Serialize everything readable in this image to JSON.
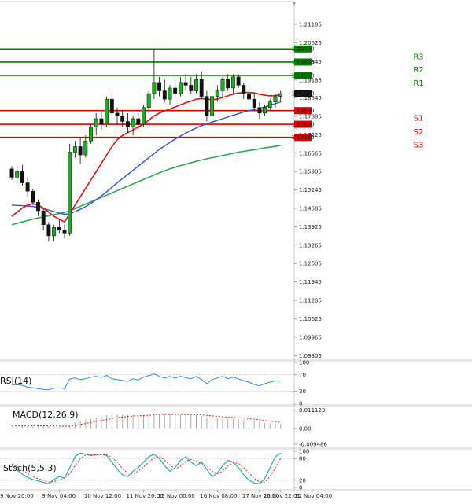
{
  "chart_data": {
    "type": "candlestick",
    "title": "",
    "price_axis": {
      "ylim": [
        1.092,
        1.22
      ],
      "ticks": [
        "1.21185",
        "1.20525",
        "1.19845",
        "1.19185",
        "1.18545",
        "1.17885",
        "1.17225",
        "1.16565",
        "1.15905",
        "1.15245",
        "1.14585",
        "1.13925",
        "1.13265",
        "1.12605",
        "1.11945",
        "1.11285",
        "1.10625",
        "1.09965",
        "1.09305"
      ],
      "tick_values": [
        1.21185,
        1.20525,
        1.19845,
        1.19185,
        1.18545,
        1.17885,
        1.17225,
        1.16565,
        1.15905,
        1.15245,
        1.14585,
        1.13925,
        1.13265,
        1.12605,
        1.11945,
        1.11285,
        1.10625,
        1.09965,
        1.09305
      ]
    },
    "levels": [
      {
        "name": "R3",
        "value": 1.203,
        "tag": "1.20300",
        "color": "#008000"
      },
      {
        "name": "R2",
        "value": 1.1983,
        "tag": "1.19830",
        "color": "#008000"
      },
      {
        "name": "R1",
        "value": 1.1935,
        "tag": "1.19350",
        "color": "#008000"
      },
      {
        "name": "S1",
        "value": 1.1809,
        "tag": "1.18090",
        "color": "#e00000"
      },
      {
        "name": "S2",
        "value": 1.176,
        "tag": "1.17600",
        "color": "#e00000"
      },
      {
        "name": "S3",
        "value": 1.1713,
        "tag": "1.17130",
        "color": "#e00000"
      }
    ],
    "current_price": {
      "value": 1.187,
      "tag": "1.18700"
    },
    "candles": [
      [
        1.16,
        1.161,
        1.156,
        1.157
      ],
      [
        1.157,
        1.161,
        1.155,
        1.159
      ],
      [
        1.159,
        1.1615,
        1.154,
        1.155
      ],
      [
        1.155,
        1.157,
        1.15,
        1.152
      ],
      [
        1.152,
        1.153,
        1.147,
        1.148
      ],
      [
        1.148,
        1.149,
        1.143,
        1.145
      ],
      [
        1.145,
        1.146,
        1.138,
        1.14
      ],
      [
        1.14,
        1.141,
        1.134,
        1.136
      ],
      [
        1.136,
        1.14,
        1.134,
        1.139
      ],
      [
        1.139,
        1.142,
        1.137,
        1.138
      ],
      [
        1.138,
        1.14,
        1.135,
        1.137
      ],
      [
        1.137,
        1.169,
        1.136,
        1.166
      ],
      [
        1.166,
        1.17,
        1.164,
        1.168
      ],
      [
        1.168,
        1.171,
        1.162,
        1.165
      ],
      [
        1.165,
        1.172,
        1.164,
        1.17
      ],
      [
        1.17,
        1.176,
        1.169,
        1.175
      ],
      [
        1.175,
        1.18,
        1.172,
        1.178
      ],
      [
        1.178,
        1.181,
        1.174,
        1.176
      ],
      [
        1.176,
        1.186,
        1.175,
        1.185
      ],
      [
        1.185,
        1.187,
        1.179,
        1.18
      ],
      [
        1.18,
        1.182,
        1.176,
        1.179
      ],
      [
        1.179,
        1.181,
        1.175,
        1.177
      ],
      [
        1.177,
        1.18,
        1.173,
        1.175
      ],
      [
        1.175,
        1.179,
        1.172,
        1.178
      ],
      [
        1.178,
        1.18,
        1.174,
        1.176
      ],
      [
        1.176,
        1.183,
        1.175,
        1.182
      ],
      [
        1.182,
        1.188,
        1.18,
        1.187
      ],
      [
        1.187,
        1.203,
        1.185,
        1.191
      ],
      [
        1.191,
        1.193,
        1.186,
        1.188
      ],
      [
        1.188,
        1.192,
        1.184,
        1.185
      ],
      [
        1.185,
        1.19,
        1.183,
        1.189
      ],
      [
        1.189,
        1.192,
        1.186,
        1.187
      ],
      [
        1.187,
        1.193,
        1.186,
        1.191
      ],
      [
        1.191,
        1.194,
        1.188,
        1.19
      ],
      [
        1.19,
        1.193,
        1.187,
        1.188
      ],
      [
        1.188,
        1.194,
        1.187,
        1.192
      ],
      [
        1.192,
        1.195,
        1.185,
        1.186
      ],
      [
        1.186,
        1.188,
        1.177,
        1.179
      ],
      [
        1.179,
        1.187,
        1.178,
        1.186
      ],
      [
        1.186,
        1.19,
        1.184,
        1.188
      ],
      [
        1.188,
        1.193,
        1.186,
        1.192
      ],
      [
        1.192,
        1.194,
        1.188,
        1.189
      ],
      [
        1.189,
        1.194,
        1.187,
        1.193
      ],
      [
        1.193,
        1.194,
        1.189,
        1.19
      ],
      [
        1.19,
        1.191,
        1.185,
        1.187
      ],
      [
        1.187,
        1.189,
        1.184,
        1.185
      ],
      [
        1.185,
        1.187,
        1.181,
        1.182
      ],
      [
        1.182,
        1.184,
        1.178,
        1.18
      ],
      [
        1.18,
        1.183,
        1.179,
        1.182
      ],
      [
        1.182,
        1.185,
        1.181,
        1.184
      ],
      [
        1.184,
        1.187,
        1.182,
        1.186
      ],
      [
        1.186,
        1.188,
        1.184,
        1.187
      ]
    ],
    "ma_red": [
      1.143,
      1.1445,
      1.146,
      1.147,
      1.1475,
      1.147,
      1.146,
      1.1445,
      1.143,
      1.142,
      1.141,
      1.144,
      1.147,
      1.15,
      1.153,
      1.156,
      1.159,
      1.162,
      1.165,
      1.168,
      1.1705,
      1.172,
      1.173,
      1.174,
      1.175,
      1.176,
      1.1775,
      1.179,
      1.18,
      1.1808,
      1.1815,
      1.1822,
      1.183,
      1.1837,
      1.1843,
      1.185,
      1.1852,
      1.185,
      1.1848,
      1.185,
      1.1856,
      1.1862,
      1.1868,
      1.1872,
      1.1874,
      1.1874,
      1.1872,
      1.1868,
      1.1864,
      1.1862,
      1.1863,
      1.1866
    ],
    "ma_blue": [
      1.147,
      1.1469,
      1.1468,
      1.1467,
      1.1465,
      1.1462,
      1.1458,
      1.1453,
      1.1447,
      1.1442,
      1.1437,
      1.144,
      1.1447,
      1.1455,
      1.1465,
      1.1476,
      1.1489,
      1.1503,
      1.1518,
      1.1534,
      1.155,
      1.1565,
      1.158,
      1.1595,
      1.161,
      1.1625,
      1.164,
      1.1655,
      1.167,
      1.1683,
      1.1695,
      1.1707,
      1.1718,
      1.1728,
      1.1738,
      1.1747,
      1.1755,
      1.1762,
      1.1768,
      1.1774,
      1.178,
      1.1786,
      1.1792,
      1.1798,
      1.1804,
      1.1809,
      1.1813,
      1.1817,
      1.1822,
      1.1828,
      1.1834,
      1.184
    ],
    "ma_green": [
      1.14,
      1.1405,
      1.141,
      1.1415,
      1.142,
      1.1424,
      1.1428,
      1.1432,
      1.1436,
      1.144,
      1.1444,
      1.145,
      1.1458,
      1.1466,
      1.1474,
      1.1482,
      1.149,
      1.1498,
      1.1506,
      1.1514,
      1.1522,
      1.153,
      1.1538,
      1.1546,
      1.1554,
      1.1562,
      1.157,
      1.1578,
      1.1586,
      1.1593,
      1.16,
      1.1606,
      1.1612,
      1.1617,
      1.1622,
      1.1627,
      1.1632,
      1.1636,
      1.164,
      1.1644,
      1.1648,
      1.1652,
      1.1656,
      1.166,
      1.1663,
      1.1666,
      1.1669,
      1.1672,
      1.1675,
      1.1678,
      1.1681,
      1.1684
    ],
    "rsi": {
      "title": "RSI(14)",
      "ticks": [
        "100",
        "70",
        "30",
        "0"
      ],
      "tick_values": [
        100,
        70,
        30,
        0
      ],
      "values": [
        45,
        46,
        44,
        40,
        38,
        36,
        34,
        33,
        37,
        38,
        36,
        60,
        62,
        58,
        60,
        64,
        66,
        63,
        68,
        60,
        58,
        56,
        54,
        60,
        57,
        64,
        68,
        72,
        66,
        62,
        66,
        62,
        66,
        63,
        60,
        66,
        58,
        48,
        58,
        62,
        66,
        60,
        64,
        60,
        55,
        52,
        46,
        43,
        48,
        52,
        55,
        54
      ]
    },
    "macd": {
      "title": "MACD(12,26,9)",
      "ticks": [
        "0.011123",
        "0.00",
        "-0.009486"
      ],
      "tick_values": [
        0.011123,
        0,
        -0.009486
      ],
      "hist": [
        0.0005,
        0.0009,
        0.0013,
        0.0016,
        0.0018,
        0.0018,
        0.0016,
        0.0013,
        0.001,
        0.0008,
        0.0006,
        0.002,
        0.0035,
        0.0045,
        0.0053,
        0.006,
        0.0067,
        0.0072,
        0.008,
        0.0083,
        0.0085,
        0.0085,
        0.0084,
        0.0083,
        0.0082,
        0.0082,
        0.0084,
        0.009,
        0.009,
        0.0088,
        0.0087,
        0.0085,
        0.0084,
        0.0082,
        0.008,
        0.008,
        0.0075,
        0.0065,
        0.0062,
        0.006,
        0.006,
        0.0058,
        0.0058,
        0.0056,
        0.0052,
        0.0048,
        0.0043,
        0.0037,
        0.0033,
        0.003,
        0.0029,
        0.0028
      ],
      "signal": [
        0.0015,
        0.0015,
        0.0015,
        0.0015,
        0.0016,
        0.0016,
        0.0016,
        0.0015,
        0.0015,
        0.0014,
        0.0013,
        0.0015,
        0.0019,
        0.0024,
        0.003,
        0.0036,
        0.0042,
        0.0048,
        0.0054,
        0.006,
        0.0065,
        0.0069,
        0.0072,
        0.0075,
        0.0077,
        0.0078,
        0.008,
        0.0082,
        0.0084,
        0.0085,
        0.0085,
        0.0085,
        0.0085,
        0.0084,
        0.0084,
        0.0083,
        0.0082,
        0.0079,
        0.0076,
        0.0073,
        0.007,
        0.0068,
        0.0066,
        0.0064,
        0.0062,
        0.0059,
        0.0056,
        0.0052,
        0.0048,
        0.0044,
        0.004,
        0.0037
      ]
    },
    "stoch": {
      "title": "Stoch(5,5,3)",
      "ticks": [
        "100",
        "80",
        "20",
        "0"
      ],
      "tick_values": [
        100,
        80,
        20,
        0
      ],
      "main": [
        60,
        48,
        36,
        28,
        22,
        18,
        14,
        10,
        22,
        30,
        26,
        55,
        85,
        95,
        92,
        88,
        90,
        93,
        88,
        70,
        50,
        35,
        30,
        45,
        55,
        70,
        85,
        92,
        80,
        60,
        45,
        55,
        75,
        85,
        70,
        60,
        70,
        50,
        30,
        40,
        60,
        75,
        70,
        55,
        35,
        20,
        12,
        10,
        25,
        55,
        85,
        95
      ],
      "signal": [
        65,
        58,
        48,
        38,
        30,
        24,
        20,
        15,
        16,
        22,
        26,
        38,
        60,
        80,
        90,
        91,
        90,
        90,
        90,
        83,
        70,
        52,
        40,
        38,
        45,
        57,
        70,
        82,
        86,
        76,
        62,
        52,
        58,
        72,
        78,
        72,
        66,
        60,
        45,
        38,
        45,
        60,
        68,
        66,
        55,
        40,
        25,
        15,
        15,
        30,
        55,
        80
      ]
    },
    "time_labels": [
      "9 Nov 20:00",
      "9 Nov 04:00",
      "10 Nov 12:00",
      "11 Nov 20:00",
      "15 Nov 00:00",
      "16 Nov 08:00",
      "17 Nov 16:00",
      "20 Nov 22:01",
      "22 Nov 04:00"
    ],
    "time_label_positions": [
      1,
      9,
      17,
      25,
      31,
      39,
      47,
      51,
      57
    ]
  }
}
